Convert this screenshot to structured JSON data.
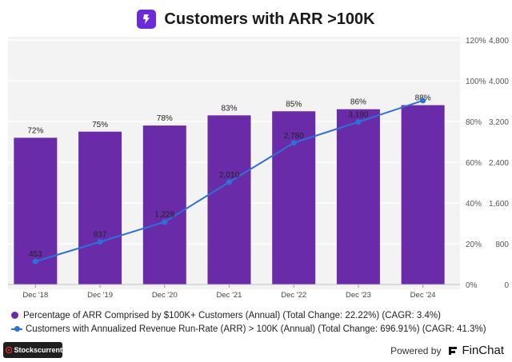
{
  "title": "Customers with ARR >100K",
  "colors": {
    "bar": "#6a2ba8",
    "line": "#2f6fd8",
    "brand": "#6c2bd9"
  },
  "chart_data": {
    "type": "bar",
    "categories": [
      "Dec '18",
      "Dec '19",
      "Dec '20",
      "Dec '21",
      "Dec '22",
      "Dec '23",
      "Dec '24"
    ],
    "series": [
      {
        "name": "Percentage of ARR Comprised by $100K+ Customers (Annual) (Total Change: 22.22%) (CAGR: 3.4%)",
        "type": "bar",
        "axis": "left",
        "values": [
          72,
          75,
          78,
          83,
          85,
          86,
          88
        ],
        "labels": [
          "72%",
          "75%",
          "78%",
          "83%",
          "85%",
          "86%",
          "88%"
        ]
      },
      {
        "name": "Customers with Annualized Revenue Run-Rate (ARR) > 100K (Annual) (Total Change: 696.91%) (CAGR: 41.3%)",
        "type": "line",
        "axis": "right",
        "values": [
          453,
          837,
          1228,
          2010,
          2780,
          3190,
          3610
        ],
        "labels": [
          "453",
          "837",
          "1,228",
          "2,010",
          "2,780",
          "3,190",
          ""
        ]
      }
    ],
    "y_left": {
      "ticks": [
        0,
        20,
        40,
        60,
        80,
        100,
        120
      ],
      "tick_labels": [
        "0%",
        "20%",
        "40%",
        "60%",
        "80%",
        "100%",
        "120%"
      ],
      "range": [
        0,
        120
      ]
    },
    "y_right": {
      "ticks": [
        0,
        800,
        1600,
        2400,
        3200,
        4000,
        4800
      ],
      "tick_labels": [
        "0",
        "800",
        "1,600",
        "2,400",
        "3,200",
        "4,000",
        "4,800"
      ],
      "range": [
        0,
        4800
      ]
    },
    "legend_position": "bottom"
  },
  "footer": {
    "left_brand": "Stockscurrent",
    "powered_by": "Powered by",
    "right_brand": "FinChat"
  }
}
